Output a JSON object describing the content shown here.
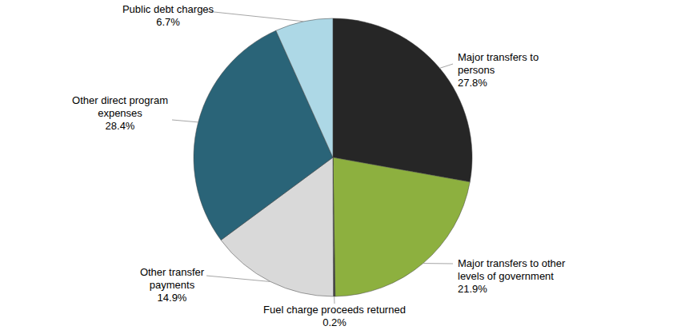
{
  "chart_data": {
    "type": "pie",
    "categories": [
      "Major transfers to persons",
      "Major transfers to other levels of government",
      "Fuel charge proceeds returned",
      "Other transfer payments",
      "Other direct program expenses",
      "Public debt charges"
    ],
    "values": [
      27.8,
      21.9,
      0.2,
      14.9,
      28.4,
      6.7
    ],
    "value_labels": [
      "27.8%",
      "21.9%",
      "0.2%",
      "14.9%",
      "28.4%",
      "6.7%"
    ],
    "colors": [
      "#262626",
      "#8db03f",
      "#3f3f3f",
      "#d9d9d9",
      "#2a6478",
      "#add8e6"
    ],
    "data_labels": true
  }
}
